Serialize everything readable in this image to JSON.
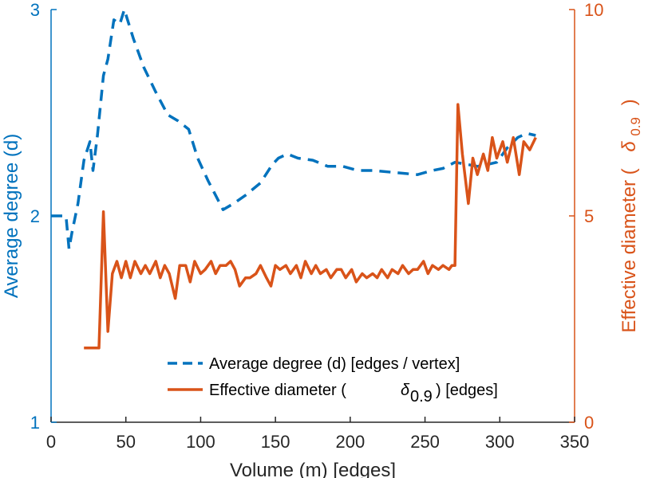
{
  "chart_data": {
    "type": "line",
    "xlabel": "Volume (m) [edges]",
    "ylabel_left": "Average degree (d)",
    "ylabel_right_parts": [
      "Effective diameter (",
      "δ",
      "0.9",
      ")"
    ],
    "xlim": [
      0,
      350
    ],
    "ylim_left": [
      1,
      3
    ],
    "ylim_right": [
      0,
      10
    ],
    "x_ticks": [
      "0",
      "50",
      "100",
      "150",
      "200",
      "250",
      "300",
      "350"
    ],
    "y_left_ticks": [
      "1",
      "2",
      "3"
    ],
    "y_right_ticks": [
      "0",
      "5",
      "10"
    ],
    "grid": false,
    "legend_position": "bottom-center",
    "colors": {
      "left": "#0072BD",
      "right": "#D95319",
      "x_axis": "#262626"
    },
    "legend": {
      "series1_text": "Average degree (d) [edges / vertex]",
      "series2_text_a": "Effective diameter (",
      "series2_delta": "δ",
      "series2_sub": "0.9",
      "series2_text_b": ") [edges]"
    },
    "series": [
      {
        "axis": "left",
        "style": "dashed",
        "color": "#0072BD",
        "x": [
          0,
          10,
          12,
          14,
          18,
          22,
          26,
          28,
          31,
          35,
          38,
          42,
          46,
          49,
          55,
          62,
          70,
          78,
          85,
          92,
          98,
          105,
          115,
          122,
          130,
          140,
          148,
          152,
          158,
          165,
          175,
          185,
          195,
          205,
          215,
          230,
          245,
          255,
          262,
          270,
          278,
          285,
          292,
          298,
          305,
          312,
          318,
          324
        ],
        "y": [
          2.0,
          2.0,
          1.84,
          1.92,
          2.06,
          2.27,
          2.36,
          2.22,
          2.39,
          2.68,
          2.76,
          2.95,
          2.93,
          3.0,
          2.86,
          2.72,
          2.6,
          2.49,
          2.46,
          2.42,
          2.28,
          2.17,
          2.03,
          2.06,
          2.1,
          2.16,
          2.25,
          2.28,
          2.3,
          2.28,
          2.27,
          2.24,
          2.24,
          2.22,
          2.22,
          2.21,
          2.2,
          2.22,
          2.23,
          2.26,
          2.25,
          2.24,
          2.25,
          2.26,
          2.33,
          2.38,
          2.4,
          2.39
        ]
      },
      {
        "axis": "right",
        "style": "solid",
        "color": "#D95319",
        "x": [
          22,
          27,
          32,
          35,
          38,
          41,
          44,
          47,
          50,
          53,
          56,
          60,
          63,
          66,
          70,
          73,
          76,
          79,
          83,
          86,
          90,
          93,
          96,
          100,
          103,
          107,
          110,
          113,
          117,
          120,
          123,
          126,
          130,
          133,
          137,
          140,
          144,
          147,
          150,
          153,
          157,
          160,
          164,
          167,
          170,
          174,
          177,
          180,
          184,
          187,
          191,
          194,
          197,
          201,
          204,
          208,
          211,
          215,
          218,
          221,
          225,
          228,
          232,
          235,
          239,
          242,
          245,
          249,
          252,
          255,
          259,
          262,
          266,
          268,
          270,
          272,
          275,
          279,
          282,
          285,
          289,
          292,
          295,
          298,
          302,
          305,
          309,
          313,
          316,
          320,
          324
        ],
        "y": [
          1.8,
          1.8,
          1.8,
          5.1,
          2.2,
          3.6,
          3.9,
          3.5,
          3.9,
          3.5,
          3.9,
          3.6,
          3.8,
          3.6,
          3.9,
          3.5,
          3.8,
          3.6,
          3.0,
          3.8,
          3.8,
          3.4,
          3.9,
          3.6,
          3.7,
          3.9,
          3.6,
          3.8,
          3.8,
          3.9,
          3.7,
          3.3,
          3.5,
          3.5,
          3.6,
          3.8,
          3.5,
          3.3,
          3.8,
          3.7,
          3.8,
          3.6,
          3.8,
          3.5,
          3.9,
          3.6,
          3.8,
          3.6,
          3.7,
          3.5,
          3.7,
          3.7,
          3.5,
          3.7,
          3.4,
          3.6,
          3.5,
          3.6,
          3.5,
          3.7,
          3.5,
          3.7,
          3.6,
          3.8,
          3.6,
          3.7,
          3.7,
          3.9,
          3.6,
          3.8,
          3.7,
          3.8,
          3.7,
          3.8,
          3.8,
          7.7,
          6.5,
          5.3,
          6.4,
          6.0,
          6.5,
          6.1,
          6.9,
          6.4,
          6.8,
          6.3,
          6.9,
          6.0,
          6.8,
          6.6,
          6.9
        ]
      }
    ]
  }
}
